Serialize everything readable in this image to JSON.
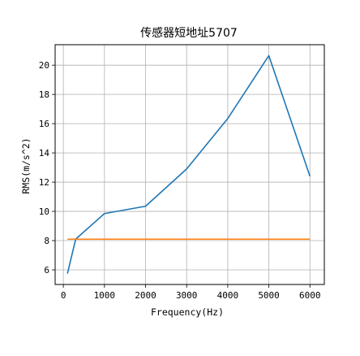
{
  "chart_data": {
    "type": "line",
    "title": "传感器短地址5707",
    "xlabel": "Frequency(Hz)",
    "ylabel": "RMS(m/s^2)",
    "xlim": [
      -200,
      6350
    ],
    "ylim": [
      5.0,
      21.4
    ],
    "xticks": [
      0,
      1000,
      2000,
      3000,
      4000,
      5000,
      6000
    ],
    "yticks": [
      6,
      8,
      10,
      12,
      14,
      16,
      18,
      20
    ],
    "grid": true,
    "series": [
      {
        "color": "#1f77b4",
        "x": [
          100,
          300,
          1000,
          2000,
          3000,
          4000,
          5000,
          6000
        ],
        "y": [
          5.75,
          8.1,
          9.85,
          10.35,
          12.9,
          16.35,
          20.65,
          12.4
        ]
      },
      {
        "color": "#ff7f0e",
        "x": [
          100,
          6000
        ],
        "y": [
          8.1,
          8.1
        ]
      }
    ]
  }
}
